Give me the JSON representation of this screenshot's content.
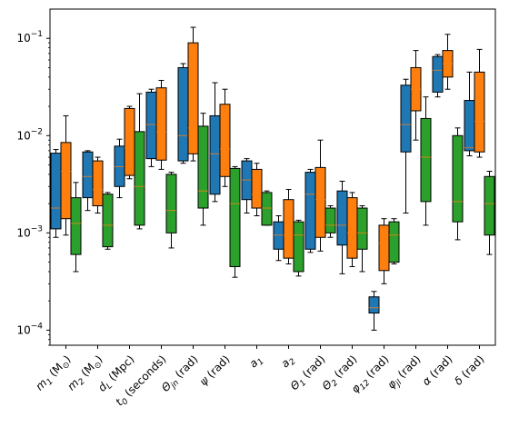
{
  "chart_data": {
    "type": "box",
    "y_scale": "log",
    "ylim": [
      7e-05,
      0.2
    ],
    "grid": false,
    "legend": "none",
    "y_ticks": [
      {
        "value": 0.1,
        "base": "10",
        "exp": "−1"
      },
      {
        "value": 0.01,
        "base": "10",
        "exp": "−2"
      },
      {
        "value": 0.001,
        "base": "10",
        "exp": "−3"
      },
      {
        "value": 0.0001,
        "base": "10",
        "exp": "−4"
      }
    ],
    "categories": [
      {
        "main": "m",
        "sub": "1",
        "unit": " (M",
        "unitsub": "⊙",
        "close": ")"
      },
      {
        "main": "m",
        "sub": "2",
        "unit": " (M",
        "unitsub": "⊙",
        "close": ")"
      },
      {
        "main": "d",
        "sub": "L",
        "unit": " (Mpc)",
        "unitsub": "",
        "close": ""
      },
      {
        "main": "t",
        "sub": "0",
        "unit": " (seconds)",
        "unitsub": "",
        "close": ""
      },
      {
        "main": "Θ",
        "sub": "jn",
        "unit": " (rad)",
        "unitsub": "",
        "close": ""
      },
      {
        "main": "ψ",
        "sub": "",
        "unit": " (rad)",
        "unitsub": "",
        "close": ""
      },
      {
        "main": "a",
        "sub": "1",
        "unit": "",
        "unitsub": "",
        "close": ""
      },
      {
        "main": "a",
        "sub": "2",
        "unit": "",
        "unitsub": "",
        "close": ""
      },
      {
        "main": "Θ",
        "sub": "1",
        "unit": " (rad)",
        "unitsub": "",
        "close": ""
      },
      {
        "main": "Θ",
        "sub": "2",
        "unit": " (rad)",
        "unitsub": "",
        "close": ""
      },
      {
        "main": "φ",
        "sub": "12",
        "unit": " (rad)",
        "unitsub": "",
        "close": ""
      },
      {
        "main": "φ",
        "sub": "jl",
        "unit": " (rad)",
        "unitsub": "",
        "close": ""
      },
      {
        "main": "α",
        "sub": "",
        "unit": " (rad)",
        "unitsub": "",
        "close": ""
      },
      {
        "main": "δ",
        "sub": "",
        "unit": " (rad)",
        "unitsub": "",
        "close": ""
      }
    ],
    "series": [
      {
        "color": "#1f77b4",
        "boxes": [
          {
            "whislo": 0.0009,
            "q1": 0.0011,
            "med": 0.0018,
            "q3": 0.0066,
            "whishi": 0.0072
          },
          {
            "whislo": 0.0017,
            "q1": 0.0023,
            "med": 0.0038,
            "q3": 0.0068,
            "whishi": 0.007
          },
          {
            "whislo": 0.0023,
            "q1": 0.003,
            "med": 0.0048,
            "q3": 0.0078,
            "whishi": 0.0092
          },
          {
            "whislo": 0.0048,
            "q1": 0.0058,
            "med": 0.013,
            "q3": 0.028,
            "whishi": 0.03
          },
          {
            "whislo": 0.0052,
            "q1": 0.0055,
            "med": 0.01,
            "q3": 0.05,
            "whishi": 0.055
          },
          {
            "whislo": 0.0021,
            "q1": 0.0025,
            "med": 0.0065,
            "q3": 0.016,
            "whishi": 0.035
          },
          {
            "whislo": 0.0016,
            "q1": 0.0022,
            "med": 0.0035,
            "q3": 0.0055,
            "whishi": 0.0058
          },
          {
            "whislo": 0.00052,
            "q1": 0.00068,
            "med": 0.00095,
            "q3": 0.0013,
            "whishi": 0.0015
          },
          {
            "whislo": 0.00063,
            "q1": 0.00068,
            "med": 0.0025,
            "q3": 0.0042,
            "whishi": 0.0045
          },
          {
            "whislo": 0.00038,
            "q1": 0.00075,
            "med": 0.0012,
            "q3": 0.0027,
            "whishi": 0.0034
          },
          {
            "whislo": 0.0001,
            "q1": 0.00015,
            "med": 0.00017,
            "q3": 0.00022,
            "whishi": 0.00025
          },
          {
            "whislo": 0.0016,
            "q1": 0.0068,
            "med": 0.013,
            "q3": 0.033,
            "whishi": 0.038
          },
          {
            "whislo": 0.025,
            "q1": 0.028,
            "med": 0.047,
            "q3": 0.065,
            "whishi": 0.068
          },
          {
            "whislo": 0.0062,
            "q1": 0.007,
            "med": 0.0075,
            "q3": 0.023,
            "whishi": 0.045
          }
        ]
      },
      {
        "color": "#ff7f0e",
        "boxes": [
          {
            "whislo": 0.00095,
            "q1": 0.0014,
            "med": 0.0043,
            "q3": 0.0085,
            "whishi": 0.016
          },
          {
            "whislo": 0.0016,
            "q1": 0.0019,
            "med": 0.0028,
            "q3": 0.0055,
            "whishi": 0.006
          },
          {
            "whislo": 0.0036,
            "q1": 0.0039,
            "med": 0.0075,
            "q3": 0.019,
            "whishi": 0.02
          },
          {
            "whislo": 0.0045,
            "q1": 0.0056,
            "med": 0.011,
            "q3": 0.031,
            "whishi": 0.037
          },
          {
            "whislo": 0.0055,
            "q1": 0.0065,
            "med": 0.012,
            "q3": 0.09,
            "whishi": 0.13
          },
          {
            "whislo": 0.003,
            "q1": 0.0038,
            "med": 0.0073,
            "q3": 0.021,
            "whishi": 0.03
          },
          {
            "whislo": 0.0015,
            "q1": 0.0018,
            "med": 0.0025,
            "q3": 0.0045,
            "whishi": 0.0052
          },
          {
            "whislo": 0.00048,
            "q1": 0.00055,
            "med": 0.00095,
            "q3": 0.0022,
            "whishi": 0.0028
          },
          {
            "whislo": 0.00065,
            "q1": 0.0009,
            "med": 0.0022,
            "q3": 0.0047,
            "whishi": 0.009
          },
          {
            "whislo": 0.00045,
            "q1": 0.00055,
            "med": 0.001,
            "q3": 0.0023,
            "whishi": 0.0026
          },
          {
            "whislo": 0.0003,
            "q1": 0.00041,
            "med": 0.00078,
            "q3": 0.0012,
            "whishi": 0.0014
          },
          {
            "whislo": 0.009,
            "q1": 0.018,
            "med": 0.03,
            "q3": 0.05,
            "whishi": 0.075
          },
          {
            "whislo": 0.03,
            "q1": 0.04,
            "med": 0.055,
            "q3": 0.075,
            "whishi": 0.11
          },
          {
            "whislo": 0.006,
            "q1": 0.0068,
            "med": 0.014,
            "q3": 0.045,
            "whishi": 0.077
          }
        ]
      },
      {
        "color": "#2ca02c",
        "boxes": [
          {
            "whislo": 0.0004,
            "q1": 0.0006,
            "med": 0.00125,
            "q3": 0.0023,
            "whishi": 0.0033
          },
          {
            "whislo": 0.00068,
            "q1": 0.00072,
            "med": 0.0012,
            "q3": 0.0025,
            "whishi": 0.0026
          },
          {
            "whislo": 0.0011,
            "q1": 0.0012,
            "med": 0.003,
            "q3": 0.011,
            "whishi": 0.027
          },
          {
            "whislo": 0.0007,
            "q1": 0.001,
            "med": 0.0017,
            "q3": 0.004,
            "whishi": 0.0042
          },
          {
            "whislo": 0.0012,
            "q1": 0.0018,
            "med": 0.0027,
            "q3": 0.0125,
            "whishi": 0.017
          },
          {
            "whislo": 0.00035,
            "q1": 0.00045,
            "med": 0.002,
            "q3": 0.0046,
            "whishi": 0.0048
          },
          {
            "whislo": 0.0012,
            "q1": 0.0012,
            "med": 0.0018,
            "q3": 0.0026,
            "whishi": 0.0027
          },
          {
            "whislo": 0.00036,
            "q1": 0.0004,
            "med": 0.00095,
            "q3": 0.0013,
            "whishi": 0.00135
          },
          {
            "whislo": 0.0009,
            "q1": 0.001,
            "med": 0.0012,
            "q3": 0.0018,
            "whishi": 0.0019
          },
          {
            "whislo": 0.0004,
            "q1": 0.00068,
            "med": 0.001,
            "q3": 0.0018,
            "whishi": 0.0019
          },
          {
            "whislo": 0.00048,
            "q1": 0.0005,
            "med": 0.00095,
            "q3": 0.0013,
            "whishi": 0.0014
          },
          {
            "whislo": 0.0012,
            "q1": 0.0021,
            "med": 0.006,
            "q3": 0.015,
            "whishi": 0.025
          },
          {
            "whislo": 0.00085,
            "q1": 0.0013,
            "med": 0.0021,
            "q3": 0.01,
            "whishi": 0.012
          },
          {
            "whislo": 0.0006,
            "q1": 0.00095,
            "med": 0.002,
            "q3": 0.0038,
            "whishi": 0.0043
          }
        ]
      }
    ]
  }
}
